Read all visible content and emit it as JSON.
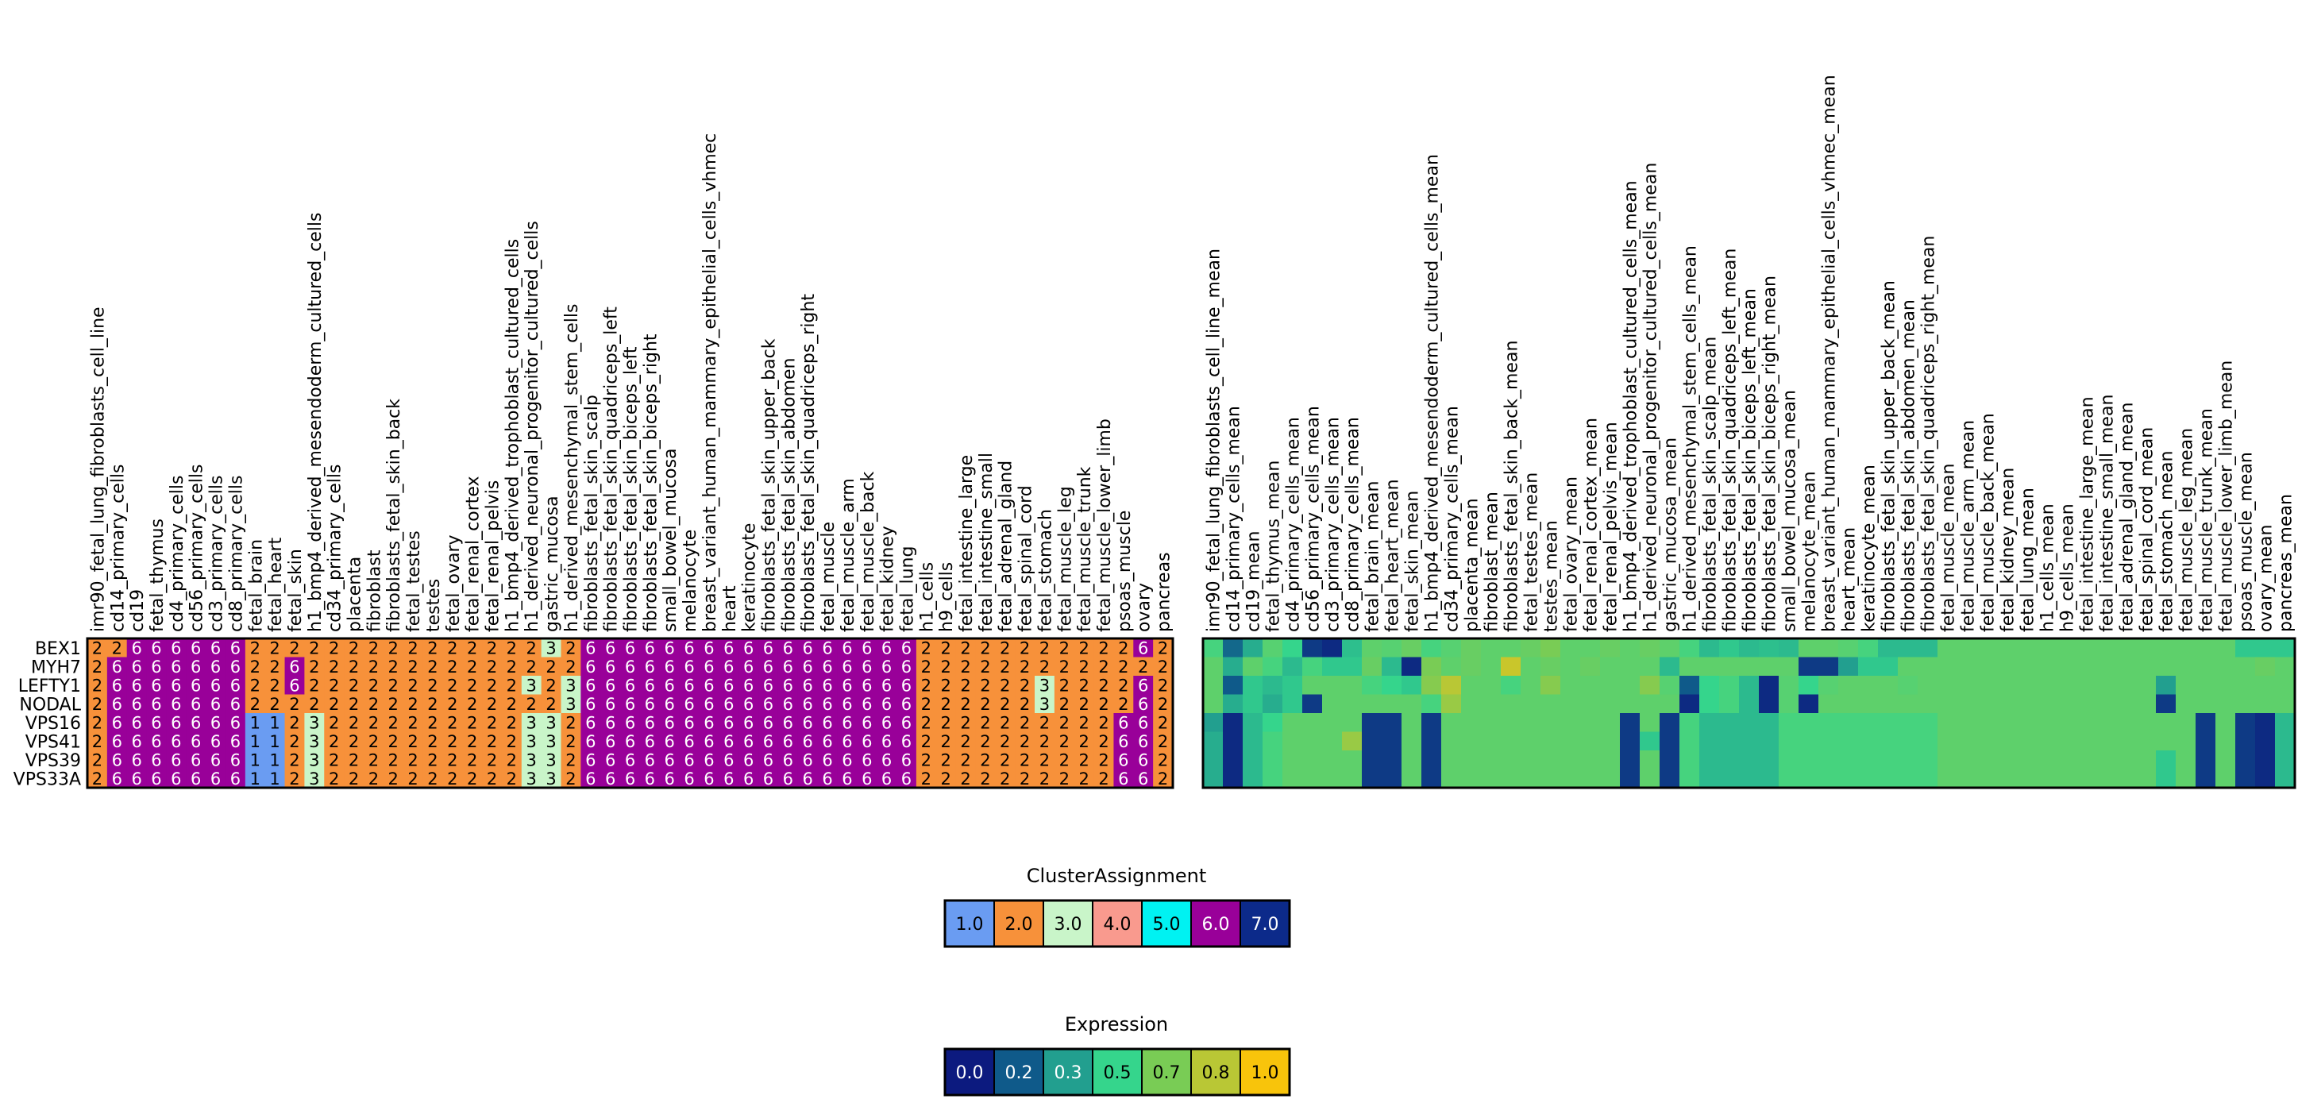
{
  "chart_data": [
    {
      "type": "heatmap",
      "title": "",
      "columns": [
        "imr90_fetal_lung_fibroblasts_cell_line",
        "cd14_primary_cells",
        "cd19",
        "fetal_thymus",
        "cd4_primary_cells",
        "cd56_primary_cells",
        "cd3_primary_cells",
        "cd8_primary_cells",
        "fetal_brain",
        "fetal_heart",
        "fetal_skin",
        "h1_bmp4_derived_mesendoderm_cultured_cells",
        "cd34_primary_cells",
        "placenta",
        "fibroblast",
        "fibroblasts_fetal_skin_back",
        "fetal_testes",
        "testes",
        "fetal_ovary",
        "fetal_renal_cortex",
        "fetal_renal_pelvis",
        "h1_bmp4_derived_trophoblast_cultured_cells",
        "h1_derived_neuronal_progenitor_cultured_cells",
        "gastric_mucosa",
        "h1_derived_mesenchymal_stem_cells",
        "fibroblasts_fetal_skin_scalp",
        "fibroblasts_fetal_skin_quadriceps_left",
        "fibroblasts_fetal_skin_biceps_left",
        "fibroblasts_fetal_skin_biceps_right",
        "small_bowel_mucosa",
        "melanocyte",
        "breast_variant_human_mammary_epithelial_cells_vhmec",
        "heart",
        "keratinocyte",
        "fibroblasts_fetal_skin_upper_back",
        "fibroblasts_fetal_skin_abdomen",
        "fibroblasts_fetal_skin_quadriceps_right",
        "fetal_muscle",
        "fetal_muscle_arm",
        "fetal_muscle_back",
        "fetal_kidney",
        "fetal_lung",
        "h1_cells",
        "h9_cells",
        "fetal_intestine_large",
        "fetal_intestine_small",
        "fetal_adrenal_gland",
        "fetal_spinal_cord",
        "fetal_stomach",
        "fetal_muscle_leg",
        "fetal_muscle_trunk",
        "fetal_muscle_lower_limb",
        "psoas_muscle",
        "ovary",
        "pancreas"
      ],
      "rows": [
        "BEX1",
        "MYH7",
        "LEFTY1",
        "NODAL",
        "VPS16",
        "VPS41",
        "VPS39",
        "VPS33A"
      ],
      "values": [
        [
          2,
          2,
          6,
          6,
          6,
          6,
          6,
          6,
          2,
          2,
          2,
          2,
          2,
          2,
          2,
          2,
          2,
          2,
          2,
          2,
          2,
          2,
          2,
          3,
          2,
          6,
          6,
          6,
          6,
          6,
          6,
          6,
          6,
          6,
          6,
          6,
          6,
          6,
          6,
          6,
          6,
          6,
          2,
          2,
          2,
          2,
          2,
          2,
          2,
          2,
          2,
          2,
          2,
          6,
          2
        ],
        [
          2,
          6,
          6,
          6,
          6,
          6,
          6,
          6,
          2,
          2,
          6,
          2,
          2,
          2,
          2,
          2,
          2,
          2,
          2,
          2,
          2,
          2,
          2,
          2,
          2,
          6,
          6,
          6,
          6,
          6,
          6,
          6,
          6,
          6,
          6,
          6,
          6,
          6,
          6,
          6,
          6,
          6,
          2,
          2,
          2,
          2,
          2,
          2,
          2,
          2,
          2,
          2,
          2,
          2,
          2
        ],
        [
          2,
          6,
          6,
          6,
          6,
          6,
          6,
          6,
          2,
          2,
          6,
          2,
          2,
          2,
          2,
          2,
          2,
          2,
          2,
          2,
          2,
          2,
          3,
          2,
          3,
          6,
          6,
          6,
          6,
          6,
          6,
          6,
          6,
          6,
          6,
          6,
          6,
          6,
          6,
          6,
          6,
          6,
          2,
          2,
          2,
          2,
          2,
          2,
          3,
          2,
          2,
          2,
          2,
          6,
          2
        ],
        [
          2,
          6,
          6,
          6,
          6,
          6,
          6,
          6,
          2,
          2,
          2,
          2,
          2,
          2,
          2,
          2,
          2,
          2,
          2,
          2,
          2,
          2,
          2,
          2,
          3,
          6,
          6,
          6,
          6,
          6,
          6,
          6,
          6,
          6,
          6,
          6,
          6,
          6,
          6,
          6,
          6,
          6,
          2,
          2,
          2,
          2,
          2,
          2,
          3,
          2,
          2,
          2,
          2,
          6,
          2
        ],
        [
          2,
          6,
          6,
          6,
          6,
          6,
          6,
          6,
          1,
          1,
          2,
          3,
          2,
          2,
          2,
          2,
          2,
          2,
          2,
          2,
          2,
          2,
          3,
          3,
          2,
          6,
          6,
          6,
          6,
          6,
          6,
          6,
          6,
          6,
          6,
          6,
          6,
          6,
          6,
          6,
          6,
          6,
          2,
          2,
          2,
          2,
          2,
          2,
          2,
          2,
          2,
          2,
          6,
          6,
          2
        ],
        [
          2,
          6,
          6,
          6,
          6,
          6,
          6,
          6,
          1,
          1,
          2,
          3,
          2,
          2,
          2,
          2,
          2,
          2,
          2,
          2,
          2,
          2,
          3,
          3,
          2,
          6,
          6,
          6,
          6,
          6,
          6,
          6,
          6,
          6,
          6,
          6,
          6,
          6,
          6,
          6,
          6,
          6,
          2,
          2,
          2,
          2,
          2,
          2,
          2,
          2,
          2,
          2,
          6,
          6,
          2
        ],
        [
          2,
          6,
          6,
          6,
          6,
          6,
          6,
          6,
          1,
          1,
          2,
          3,
          2,
          2,
          2,
          2,
          2,
          2,
          2,
          2,
          2,
          2,
          3,
          3,
          2,
          6,
          6,
          6,
          6,
          6,
          6,
          6,
          6,
          6,
          6,
          6,
          6,
          6,
          6,
          6,
          6,
          6,
          2,
          2,
          2,
          2,
          2,
          2,
          2,
          2,
          2,
          2,
          6,
          6,
          2
        ],
        [
          2,
          6,
          6,
          6,
          6,
          6,
          6,
          6,
          1,
          1,
          2,
          3,
          2,
          2,
          2,
          2,
          2,
          2,
          2,
          2,
          2,
          2,
          3,
          3,
          2,
          6,
          6,
          6,
          6,
          6,
          6,
          6,
          6,
          6,
          6,
          6,
          6,
          6,
          6,
          6,
          6,
          6,
          2,
          2,
          2,
          2,
          2,
          2,
          2,
          2,
          2,
          2,
          6,
          6,
          2
        ]
      ],
      "colormap": {
        "1": "#6a9cf2",
        "2": "#f7913a",
        "3": "#c9f5c9",
        "4": "#f99a8e",
        "5": "#00f2f2",
        "6": "#990099",
        "7": "#0c2a8a"
      },
      "cell_text_colors": {
        "light": "#ffffff",
        "dark": "#000000"
      }
    },
    {
      "type": "heatmap",
      "title": "",
      "columns": [
        "imr90_fetal_lung_fibroblasts_cell_line_mean",
        "cd14_primary_cells_mean",
        "cd19_mean",
        "fetal_thymus_mean",
        "cd4_primary_cells_mean",
        "cd56_primary_cells_mean",
        "cd3_primary_cells_mean",
        "cd8_primary_cells_mean",
        "fetal_brain_mean",
        "fetal_heart_mean",
        "fetal_skin_mean",
        "h1_bmp4_derived_mesendoderm_cultured_cells_mean",
        "cd34_primary_cells_mean",
        "placenta_mean",
        "fibroblast_mean",
        "fibroblasts_fetal_skin_back_mean",
        "fetal_testes_mean",
        "testes_mean",
        "fetal_ovary_mean",
        "fetal_renal_cortex_mean",
        "fetal_renal_pelvis_mean",
        "h1_bmp4_derived_trophoblast_cultured_cells_mean",
        "h1_derived_neuronal_progenitor_cultured_cells_mean",
        "gastric_mucosa_mean",
        "h1_derived_mesenchymal_stem_cells_mean",
        "fibroblasts_fetal_skin_scalp_mean",
        "fibroblasts_fetal_skin_quadriceps_left_mean",
        "fibroblasts_fetal_skin_biceps_left_mean",
        "fibroblasts_fetal_skin_biceps_right_mean",
        "small_bowel_mucosa_mean",
        "melanocyte_mean",
        "breast_variant_human_mammary_epithelial_cells_vhmec_mean",
        "heart_mean",
        "keratinocyte_mean",
        "fibroblasts_fetal_skin_upper_back_mean",
        "fibroblasts_fetal_skin_abdomen_mean",
        "fibroblasts_fetal_skin_quadriceps_right_mean",
        "fetal_muscle_mean",
        "fetal_muscle_arm_mean",
        "fetal_muscle_back_mean",
        "fetal_kidney_mean",
        "fetal_lung_mean",
        "h1_cells_mean",
        "h9_cells_mean",
        "fetal_intestine_large_mean",
        "fetal_intestine_small_mean",
        "fetal_adrenal_gland_mean",
        "fetal_spinal_cord_mean",
        "fetal_stomach_mean",
        "fetal_muscle_leg_mean",
        "fetal_muscle_trunk_mean",
        "fetal_muscle_lower_limb_mean",
        "psoas_muscle_mean",
        "ovary_mean",
        "pancreas_mean"
      ],
      "rows": [
        "BEX1",
        "MYH7",
        "LEFTY1",
        "NODAL",
        "VPS16",
        "VPS41",
        "VPS39",
        "VPS33A"
      ],
      "colorscale": {
        "stops": [
          0.0,
          0.2,
          0.3,
          0.5,
          0.7,
          0.8,
          1.0
        ],
        "colors": [
          "#0c1a7f",
          "#0f5a8a",
          "#229f8f",
          "#35d58c",
          "#79cc55",
          "#b9c735",
          "#f8c40b"
        ]
      },
      "values": [
        [
          0.55,
          0.22,
          0.35,
          0.6,
          0.5,
          0.1,
          0.05,
          0.42,
          0.62,
          0.6,
          0.65,
          0.55,
          0.6,
          0.65,
          0.62,
          0.62,
          0.65,
          0.7,
          0.62,
          0.62,
          0.65,
          0.62,
          0.65,
          0.62,
          0.55,
          0.4,
          0.45,
          0.4,
          0.42,
          0.4,
          0.62,
          0.62,
          0.6,
          0.55,
          0.4,
          0.4,
          0.4,
          0.62,
          0.62,
          0.62,
          0.62,
          0.62,
          0.62,
          0.62,
          0.62,
          0.62,
          0.62,
          0.62,
          0.62,
          0.62,
          0.62,
          0.62,
          0.45,
          0.45,
          0.45
        ],
        [
          0.62,
          0.35,
          0.62,
          0.55,
          0.4,
          0.55,
          0.45,
          0.45,
          0.65,
          0.4,
          0.05,
          0.7,
          0.62,
          0.65,
          0.62,
          0.85,
          0.62,
          0.65,
          0.62,
          0.65,
          0.62,
          0.62,
          0.62,
          0.4,
          0.62,
          0.62,
          0.62,
          0.62,
          0.62,
          0.62,
          0.1,
          0.1,
          0.3,
          0.45,
          0.45,
          0.62,
          0.62,
          0.62,
          0.62,
          0.62,
          0.62,
          0.62,
          0.62,
          0.62,
          0.62,
          0.62,
          0.62,
          0.62,
          0.62,
          0.62,
          0.62,
          0.62,
          0.62,
          0.65,
          0.62
        ],
        [
          0.62,
          0.2,
          0.45,
          0.4,
          0.45,
          0.62,
          0.62,
          0.62,
          0.55,
          0.5,
          0.45,
          0.72,
          0.8,
          0.62,
          0.62,
          0.55,
          0.62,
          0.72,
          0.62,
          0.62,
          0.62,
          0.62,
          0.72,
          0.6,
          0.2,
          0.5,
          0.55,
          0.4,
          0.05,
          0.6,
          0.5,
          0.6,
          0.62,
          0.62,
          0.62,
          0.6,
          0.62,
          0.62,
          0.62,
          0.62,
          0.62,
          0.62,
          0.62,
          0.62,
          0.62,
          0.62,
          0.62,
          0.62,
          0.3,
          0.62,
          0.62,
          0.62,
          0.62,
          0.62,
          0.62
        ],
        [
          0.62,
          0.35,
          0.45,
          0.35,
          0.45,
          0.1,
          0.62,
          0.62,
          0.62,
          0.62,
          0.62,
          0.55,
          0.75,
          0.62,
          0.62,
          0.62,
          0.62,
          0.62,
          0.62,
          0.62,
          0.62,
          0.62,
          0.62,
          0.62,
          0.05,
          0.5,
          0.55,
          0.4,
          0.05,
          0.6,
          0.05,
          0.62,
          0.62,
          0.62,
          0.62,
          0.62,
          0.62,
          0.62,
          0.62,
          0.62,
          0.62,
          0.62,
          0.62,
          0.62,
          0.62,
          0.62,
          0.62,
          0.62,
          0.1,
          0.62,
          0.62,
          0.62,
          0.62,
          0.62,
          0.62
        ],
        [
          0.3,
          0.05,
          0.4,
          0.5,
          0.62,
          0.62,
          0.62,
          0.62,
          0.1,
          0.1,
          0.62,
          0.1,
          0.62,
          0.62,
          0.62,
          0.62,
          0.62,
          0.62,
          0.62,
          0.62,
          0.62,
          0.1,
          0.62,
          0.1,
          0.55,
          0.4,
          0.4,
          0.4,
          0.4,
          0.55,
          0.55,
          0.55,
          0.55,
          0.55,
          0.55,
          0.55,
          0.55,
          0.62,
          0.62,
          0.62,
          0.62,
          0.62,
          0.62,
          0.62,
          0.62,
          0.62,
          0.62,
          0.62,
          0.62,
          0.62,
          0.1,
          0.62,
          0.1,
          0.05,
          0.4
        ],
        [
          0.35,
          0.05,
          0.4,
          0.55,
          0.62,
          0.62,
          0.62,
          0.75,
          0.1,
          0.1,
          0.62,
          0.1,
          0.62,
          0.62,
          0.62,
          0.62,
          0.62,
          0.62,
          0.62,
          0.62,
          0.62,
          0.1,
          0.45,
          0.1,
          0.55,
          0.4,
          0.4,
          0.4,
          0.4,
          0.55,
          0.55,
          0.55,
          0.55,
          0.55,
          0.55,
          0.55,
          0.55,
          0.62,
          0.62,
          0.62,
          0.62,
          0.62,
          0.62,
          0.62,
          0.62,
          0.62,
          0.62,
          0.62,
          0.62,
          0.62,
          0.1,
          0.62,
          0.1,
          0.05,
          0.4
        ],
        [
          0.35,
          0.05,
          0.4,
          0.55,
          0.62,
          0.62,
          0.62,
          0.62,
          0.1,
          0.1,
          0.62,
          0.1,
          0.62,
          0.62,
          0.62,
          0.62,
          0.62,
          0.62,
          0.62,
          0.62,
          0.62,
          0.1,
          0.62,
          0.1,
          0.55,
          0.4,
          0.4,
          0.4,
          0.4,
          0.55,
          0.55,
          0.55,
          0.55,
          0.55,
          0.55,
          0.55,
          0.55,
          0.62,
          0.62,
          0.62,
          0.62,
          0.62,
          0.62,
          0.62,
          0.62,
          0.62,
          0.62,
          0.62,
          0.45,
          0.62,
          0.1,
          0.62,
          0.1,
          0.05,
          0.4
        ],
        [
          0.35,
          0.05,
          0.4,
          0.55,
          0.62,
          0.62,
          0.62,
          0.62,
          0.1,
          0.1,
          0.62,
          0.1,
          0.62,
          0.62,
          0.62,
          0.62,
          0.62,
          0.62,
          0.62,
          0.62,
          0.62,
          0.1,
          0.62,
          0.1,
          0.55,
          0.4,
          0.4,
          0.4,
          0.4,
          0.55,
          0.55,
          0.55,
          0.55,
          0.55,
          0.55,
          0.55,
          0.55,
          0.62,
          0.62,
          0.62,
          0.62,
          0.62,
          0.62,
          0.62,
          0.62,
          0.62,
          0.62,
          0.62,
          0.45,
          0.62,
          0.1,
          0.62,
          0.1,
          0.05,
          0.4
        ]
      ]
    }
  ],
  "legends": {
    "cluster": {
      "title": "ClusterAssignment",
      "labels": [
        "1.0",
        "2.0",
        "3.0",
        "4.0",
        "5.0",
        "6.0",
        "7.0"
      ],
      "colors": [
        "#6a9cf2",
        "#f7913a",
        "#c9f5c9",
        "#f99a8e",
        "#00f2f2",
        "#990099",
        "#0c2a8a"
      ],
      "text_colors": [
        "#000000",
        "#000000",
        "#000000",
        "#000000",
        "#000000",
        "#ffffff",
        "#ffffff"
      ]
    },
    "expression": {
      "title": "Expression",
      "labels": [
        "0.0",
        "0.2",
        "0.3",
        "0.5",
        "0.7",
        "0.8",
        "1.0"
      ],
      "colors": [
        "#0c1a7f",
        "#0f5a8a",
        "#229f8f",
        "#35d58c",
        "#79cc55",
        "#b9c735",
        "#f8c40b"
      ],
      "text_colors": [
        "#ffffff",
        "#ffffff",
        "#ffffff",
        "#000000",
        "#000000",
        "#000000",
        "#000000"
      ]
    }
  }
}
